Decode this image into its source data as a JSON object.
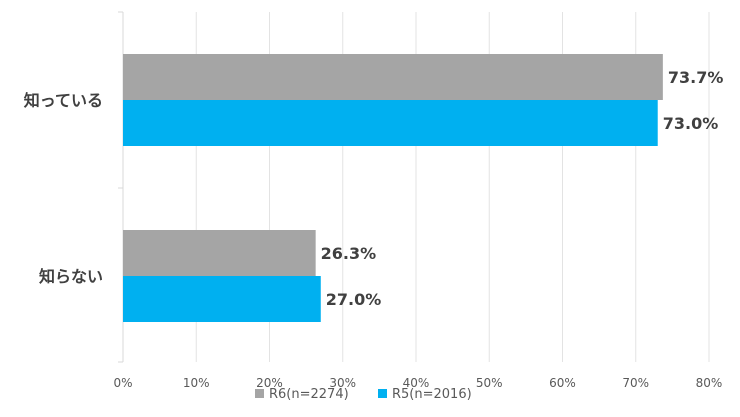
{
  "chart_data": {
    "type": "bar",
    "orientation": "horizontal",
    "title": "",
    "xlabel": "",
    "ylabel": "",
    "categories": [
      "知っている",
      "知らない"
    ],
    "series": [
      {
        "name": "R6(n=2274)",
        "color": "#a5a5a5",
        "values": [
          73.7,
          26.3
        ],
        "labels": [
          "73.7%",
          "26.3%"
        ]
      },
      {
        "name": "R5(n=2016)",
        "color": "#00b0f0",
        "values": [
          73.0,
          27.0
        ],
        "labels": [
          "73.0%",
          "27.0%"
        ]
      }
    ],
    "xlim": [
      0,
      80
    ],
    "xticks": [
      0,
      10,
      20,
      30,
      40,
      50,
      60,
      70,
      80
    ],
    "xtick_labels": [
      "0%",
      "10%",
      "20%",
      "30%",
      "40%",
      "50%",
      "60%",
      "70%",
      "80%"
    ],
    "grid": true,
    "legend_position": "bottom"
  }
}
